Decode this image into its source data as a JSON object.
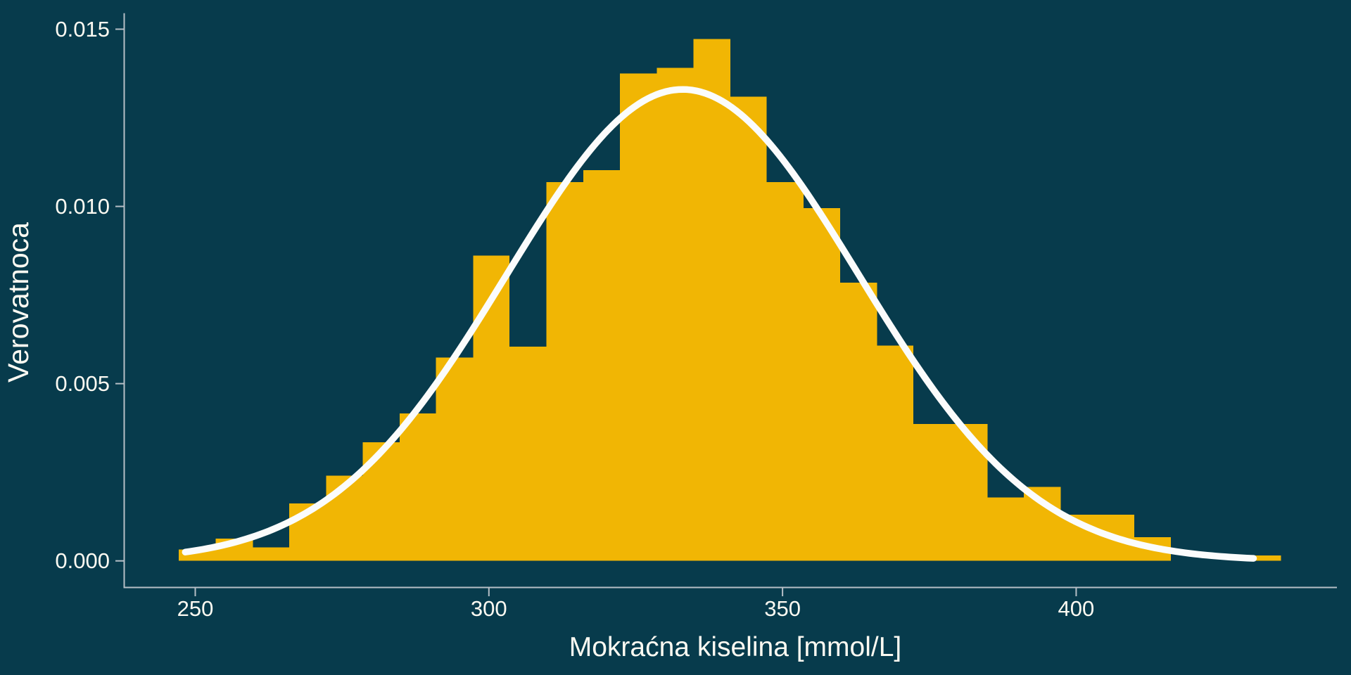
{
  "figure": {
    "background_color": "#073B4C"
  },
  "chart_data": {
    "type": "bar",
    "subtype": "histogram_with_density_overlay",
    "title": "",
    "xlabel": "Mokraćna kiselina [mmol/L]",
    "ylabel": "Verovatnoca",
    "grid": "off",
    "legend": "none",
    "x_axis": {
      "lim": [
        237.9,
        444.4
      ],
      "ticks": [
        {
          "value": 250,
          "label": "250"
        },
        {
          "value": 300,
          "label": "300"
        },
        {
          "value": 350,
          "label": "350"
        },
        {
          "value": 400,
          "label": "400"
        }
      ]
    },
    "y_axis": {
      "lim": [
        -0.00075,
        0.01545
      ],
      "ticks": [
        {
          "value": 0.0,
          "label": "0.000"
        },
        {
          "value": 0.005,
          "label": "0.005"
        },
        {
          "value": 0.01,
          "label": "0.010"
        },
        {
          "value": 0.015,
          "label": "0.015"
        }
      ]
    },
    "histogram": {
      "bin_edges": [
        247.2,
        253.5,
        259.8,
        266.0,
        272.3,
        278.5,
        284.8,
        291.0,
        297.3,
        303.5,
        309.8,
        316.1,
        322.3,
        328.6,
        334.8,
        341.1,
        347.3,
        353.6,
        359.8,
        366.1,
        372.3,
        378.6,
        384.9,
        391.1,
        397.4,
        403.6,
        409.9,
        416.1,
        422.4,
        428.6,
        434.9
      ],
      "densities": [
        0.00032,
        0.00063,
        0.00038,
        0.00162,
        0.0024,
        0.00335,
        0.00416,
        0.00574,
        0.00861,
        0.00604,
        0.01069,
        0.01102,
        0.01375,
        0.01391,
        0.01472,
        0.0131,
        0.01069,
        0.00995,
        0.00785,
        0.00607,
        0.00386,
        0.00386,
        0.00179,
        0.00209,
        0.0013,
        0.0013,
        0.00067,
        0.0,
        0.0,
        0.00015
      ]
    },
    "density_curve": {
      "distribution": "normal",
      "mean": 333,
      "sd": 30,
      "peak_density": 0.0133,
      "x_start": 248.3,
      "x_end": 430.2
    },
    "colors": {
      "background": "#073B4C",
      "bar": "#F1B604",
      "curve": "#FBFCFC",
      "axis_line": "#B6BFC6",
      "text": "#FCFAF2"
    }
  }
}
